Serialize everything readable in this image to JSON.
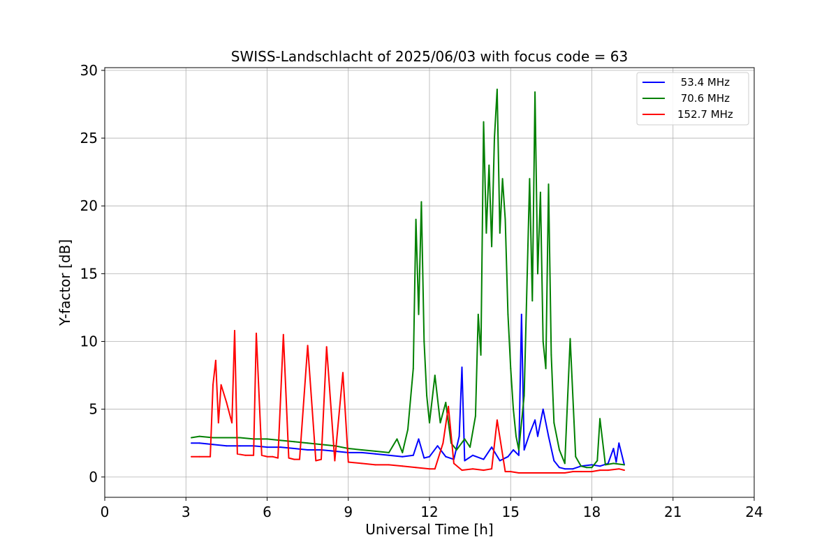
{
  "chart_data": {
    "type": "line",
    "title": "SWISS-Landschlacht of 2025/06/03 with focus code = 63",
    "xlabel": "Universal Time [h]",
    "ylabel": "Y-factor [dB]",
    "xlim": [
      0,
      24
    ],
    "ylim": [
      -1.5,
      30.2
    ],
    "xticks": [
      0,
      3,
      6,
      9,
      12,
      15,
      18,
      21,
      24
    ],
    "yticks": [
      0,
      5,
      10,
      15,
      20,
      25,
      30
    ],
    "grid": true,
    "legend_position": "top-right",
    "series": [
      {
        "name": " 53.4 MHz",
        "color": "#0000ff",
        "x": [
          3.2,
          3.5,
          4.0,
          4.5,
          5.0,
          5.5,
          6.0,
          6.5,
          7.0,
          7.5,
          8.0,
          8.5,
          9.0,
          9.5,
          10.0,
          10.5,
          11.0,
          11.4,
          11.6,
          11.8,
          12.0,
          12.3,
          12.6,
          12.9,
          13.1,
          13.2,
          13.3,
          13.6,
          14.0,
          14.3,
          14.6,
          14.9,
          15.1,
          15.3,
          15.4,
          15.5,
          15.7,
          15.9,
          16.0,
          16.2,
          16.4,
          16.6,
          16.8,
          17.0,
          17.3,
          17.6,
          18.0,
          18.3,
          18.6,
          18.8,
          18.9,
          19.0,
          19.2
        ],
        "y": [
          2.5,
          2.5,
          2.4,
          2.3,
          2.3,
          2.3,
          2.2,
          2.2,
          2.1,
          2.0,
          2.0,
          1.9,
          1.8,
          1.8,
          1.7,
          1.6,
          1.5,
          1.6,
          2.8,
          1.4,
          1.5,
          2.3,
          1.5,
          1.3,
          3.0,
          8.1,
          1.2,
          1.6,
          1.3,
          2.2,
          1.2,
          1.5,
          2.0,
          1.6,
          12.0,
          2.0,
          3.2,
          4.2,
          3.0,
          5.0,
          3.0,
          1.2,
          0.7,
          0.6,
          0.6,
          0.8,
          0.9,
          0.8,
          1.0,
          2.1,
          1.1,
          2.5,
          0.9
        ]
      },
      {
        "name": " 70.6 MHz",
        "color": "#008000",
        "x": [
          3.2,
          3.5,
          4.0,
          4.5,
          5.0,
          5.5,
          6.0,
          6.5,
          7.0,
          7.5,
          8.0,
          8.5,
          9.0,
          9.5,
          10.0,
          10.5,
          10.8,
          11.0,
          11.2,
          11.4,
          11.5,
          11.6,
          11.7,
          11.8,
          11.9,
          12.0,
          12.2,
          12.4,
          12.6,
          12.8,
          13.0,
          13.3,
          13.5,
          13.7,
          13.8,
          13.9,
          14.0,
          14.1,
          14.2,
          14.3,
          14.4,
          14.5,
          14.6,
          14.7,
          14.8,
          14.9,
          15.0,
          15.1,
          15.2,
          15.3,
          15.5,
          15.7,
          15.8,
          15.9,
          16.0,
          16.1,
          16.2,
          16.3,
          16.4,
          16.5,
          16.6,
          16.8,
          17.0,
          17.2,
          17.4,
          17.6,
          17.8,
          18.0,
          18.2,
          18.3,
          18.5,
          18.8,
          19.2
        ],
        "y": [
          2.9,
          3.0,
          2.9,
          2.9,
          2.9,
          2.8,
          2.8,
          2.7,
          2.6,
          2.5,
          2.4,
          2.3,
          2.1,
          2.0,
          1.9,
          1.8,
          2.8,
          1.8,
          3.5,
          8.0,
          19.0,
          12.0,
          20.3,
          10.0,
          6.0,
          4.0,
          7.5,
          4.0,
          5.5,
          2.5,
          2.0,
          2.8,
          2.2,
          4.5,
          12.0,
          9.0,
          26.2,
          18.0,
          23.0,
          17.0,
          25.0,
          28.6,
          18.0,
          22.0,
          19.0,
          12.0,
          8.0,
          5.0,
          3.0,
          2.0,
          6.0,
          22.0,
          13.0,
          28.4,
          15.0,
          21.0,
          10.0,
          8.0,
          21.6,
          9.0,
          4.0,
          2.0,
          1.0,
          10.2,
          1.5,
          0.8,
          0.7,
          0.7,
          1.2,
          4.3,
          0.9,
          1.0,
          0.9
        ]
      },
      {
        "name": "152.7 MHz",
        "color": "#ff0000",
        "x": [
          3.2,
          3.5,
          3.9,
          4.0,
          4.1,
          4.2,
          4.3,
          4.5,
          4.7,
          4.8,
          4.9,
          5.2,
          5.5,
          5.6,
          5.8,
          6.0,
          6.2,
          6.4,
          6.6,
          6.8,
          7.0,
          7.2,
          7.5,
          7.8,
          8.0,
          8.2,
          8.5,
          8.8,
          9.0,
          9.5,
          10.0,
          10.5,
          11.0,
          11.5,
          12.0,
          12.2,
          12.5,
          12.7,
          12.9,
          13.2,
          13.6,
          14.0,
          14.3,
          14.5,
          14.8,
          15.0,
          15.3,
          15.6,
          15.9,
          16.2,
          16.5,
          16.8,
          17.0,
          17.3,
          17.6,
          18.0,
          18.3,
          18.6,
          19.0,
          19.2
        ],
        "y": [
          1.5,
          1.5,
          1.5,
          6.8,
          8.6,
          4.0,
          6.8,
          5.5,
          4.0,
          10.8,
          1.7,
          1.6,
          1.6,
          10.6,
          1.6,
          1.5,
          1.5,
          1.4,
          10.5,
          1.4,
          1.3,
          1.3,
          9.7,
          1.2,
          1.3,
          9.6,
          1.2,
          7.7,
          1.1,
          1.0,
          0.9,
          0.9,
          0.8,
          0.7,
          0.6,
          0.6,
          2.5,
          5.2,
          1.0,
          0.5,
          0.6,
          0.5,
          0.6,
          4.2,
          0.4,
          0.4,
          0.3,
          0.3,
          0.3,
          0.3,
          0.3,
          0.3,
          0.3,
          0.4,
          0.4,
          0.4,
          0.5,
          0.5,
          0.6,
          0.5
        ]
      }
    ]
  }
}
